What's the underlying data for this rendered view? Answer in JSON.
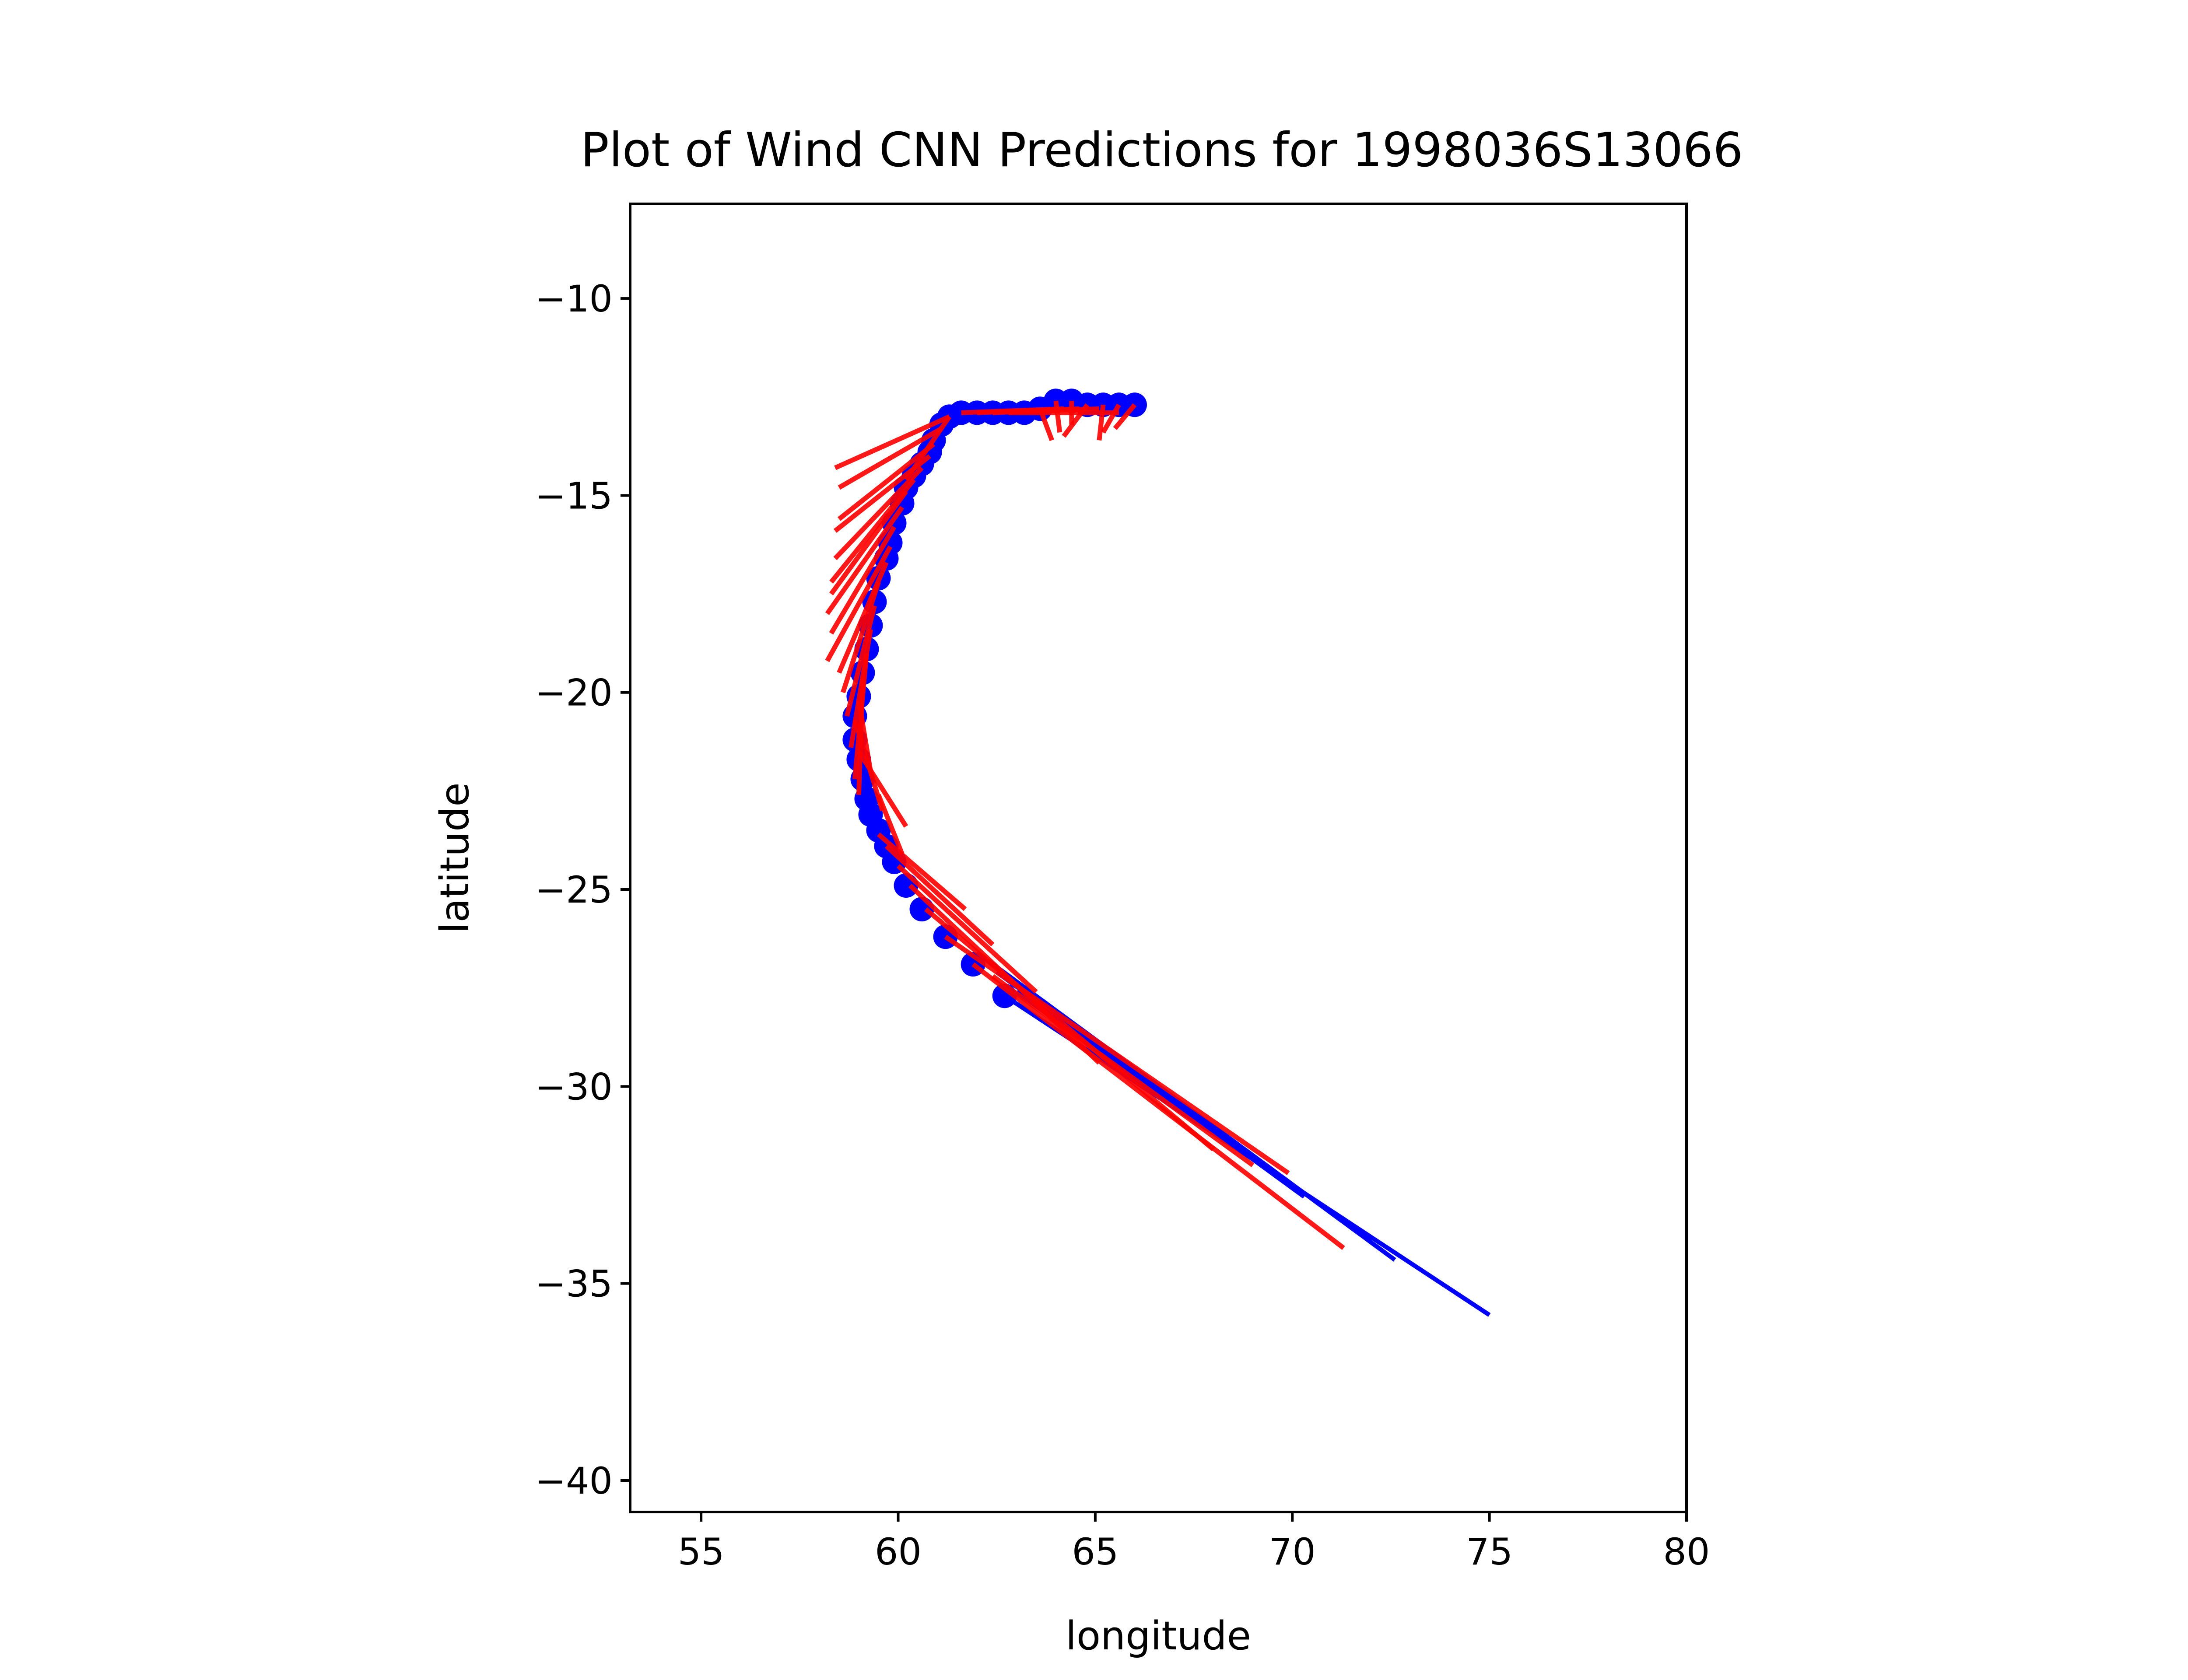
{
  "chart_data": {
    "type": "scatter",
    "title": "Plot of Wind CNN Predictions for 1998036S13066",
    "xlabel": "longitude",
    "ylabel": "latitude",
    "xlim": [
      53.2,
      80
    ],
    "ylim": [
      -40.8,
      -7.6
    ],
    "xticks": [
      55,
      60,
      65,
      70,
      75,
      80
    ],
    "yticks": [
      -10,
      -15,
      -20,
      -25,
      -30,
      -35,
      -40
    ],
    "xtick_labels": [
      "55",
      "60",
      "65",
      "70",
      "75",
      "80"
    ],
    "ytick_labels": [
      "−10",
      "−15",
      "−20",
      "−25",
      "−30",
      "−35",
      "−40"
    ],
    "grid": false,
    "legend": "none",
    "colors": {
      "track": "#0000ff",
      "prediction": "#ff0000"
    },
    "series": [
      {
        "role": "observed track points",
        "color": "#0000ff",
        "points": [
          [
            66.0,
            -12.7
          ],
          [
            65.6,
            -12.7
          ],
          [
            65.2,
            -12.7
          ],
          [
            64.8,
            -12.7
          ],
          [
            64.4,
            -12.6
          ],
          [
            64.0,
            -12.6
          ],
          [
            63.6,
            -12.8
          ],
          [
            63.2,
            -12.9
          ],
          [
            62.8,
            -12.9
          ],
          [
            62.4,
            -12.9
          ],
          [
            62.0,
            -12.9
          ],
          [
            61.6,
            -12.9
          ],
          [
            61.3,
            -13.0
          ],
          [
            61.1,
            -13.2
          ],
          [
            60.9,
            -13.6
          ],
          [
            60.8,
            -13.9
          ],
          [
            60.6,
            -14.2
          ],
          [
            60.4,
            -14.5
          ],
          [
            60.2,
            -14.8
          ],
          [
            60.1,
            -15.2
          ],
          [
            59.9,
            -15.7
          ],
          [
            59.8,
            -16.2
          ],
          [
            59.7,
            -16.6
          ],
          [
            59.5,
            -17.1
          ],
          [
            59.4,
            -17.7
          ],
          [
            59.3,
            -18.3
          ],
          [
            59.2,
            -18.9
          ],
          [
            59.1,
            -19.5
          ],
          [
            59.0,
            -20.1
          ],
          [
            58.9,
            -20.6
          ],
          [
            58.9,
            -21.2
          ],
          [
            59.0,
            -21.7
          ],
          [
            59.1,
            -22.2
          ],
          [
            59.2,
            -22.7
          ],
          [
            59.3,
            -23.1
          ],
          [
            59.5,
            -23.5
          ],
          [
            59.7,
            -23.9
          ],
          [
            59.9,
            -24.3
          ],
          [
            60.2,
            -24.9
          ],
          [
            60.6,
            -25.5
          ],
          [
            61.2,
            -26.2
          ],
          [
            61.9,
            -26.9
          ],
          [
            62.7,
            -27.7
          ]
        ]
      },
      {
        "role": "observed track lines",
        "color": "#0000ff",
        "segments": [
          [
            [
              62.7,
              -27.7
            ],
            [
              75.0,
              -35.8
            ]
          ],
          [
            [
              62.0,
              -26.6
            ],
            [
              72.6,
              -34.4
            ]
          ],
          [
            [
              62.5,
              -27.1
            ],
            [
              70.3,
              -32.8
            ]
          ],
          [
            [
              63.0,
              -27.6
            ],
            [
              68.3,
              -31.4
            ]
          ]
        ]
      },
      {
        "role": "CNN predictions",
        "color": "#ff0000",
        "segments": [
          [
            [
              61.3,
              -13.0
            ],
            [
              58.4,
              -14.3
            ]
          ],
          [
            [
              61.1,
              -13.3
            ],
            [
              58.5,
              -14.8
            ]
          ],
          [
            [
              60.9,
              -13.7
            ],
            [
              58.5,
              -15.6
            ]
          ],
          [
            [
              60.8,
              -14.0
            ],
            [
              58.4,
              -15.9
            ]
          ],
          [
            [
              60.6,
              -14.3
            ],
            [
              58.4,
              -16.6
            ]
          ],
          [
            [
              60.4,
              -14.6
            ],
            [
              58.3,
              -17.2
            ]
          ],
          [
            [
              60.2,
              -14.9
            ],
            [
              58.3,
              -17.5
            ]
          ],
          [
            [
              60.1,
              -15.3
            ],
            [
              58.2,
              -18.0
            ]
          ],
          [
            [
              59.9,
              -15.8
            ],
            [
              58.3,
              -18.5
            ]
          ],
          [
            [
              59.8,
              -16.3
            ],
            [
              58.2,
              -19.2
            ]
          ],
          [
            [
              59.7,
              -16.7
            ],
            [
              58.5,
              -19.5
            ]
          ],
          [
            [
              59.5,
              -17.2
            ],
            [
              58.6,
              -20.0
            ]
          ],
          [
            [
              59.4,
              -17.8
            ],
            [
              58.7,
              -20.6
            ]
          ],
          [
            [
              59.3,
              -18.4
            ],
            [
              58.8,
              -21.4
            ]
          ],
          [
            [
              59.2,
              -19.0
            ],
            [
              58.9,
              -22.2
            ]
          ],
          [
            [
              59.1,
              -19.6
            ],
            [
              59.0,
              -22.6
            ]
          ],
          [
            [
              59.0,
              -20.2
            ],
            [
              59.3,
              -22.0
            ]
          ],
          [
            [
              58.9,
              -20.7
            ],
            [
              59.6,
              -23.0
            ]
          ],
          [
            [
              59.0,
              -21.5
            ],
            [
              60.2,
              -23.4
            ]
          ],
          [
            [
              59.5,
              -22.6
            ],
            [
              60.1,
              -24.1
            ]
          ],
          [
            [
              59.5,
              -23.6
            ],
            [
              61.7,
              -25.5
            ]
          ],
          [
            [
              59.7,
              -23.9
            ],
            [
              62.4,
              -26.4
            ]
          ],
          [
            [
              60.0,
              -24.4
            ],
            [
              63.5,
              -27.6
            ]
          ],
          [
            [
              60.3,
              -24.9
            ],
            [
              65.1,
              -29.4
            ]
          ],
          [
            [
              60.7,
              -25.5
            ],
            [
              68.0,
              -31.6
            ]
          ],
          [
            [
              61.2,
              -26.2
            ],
            [
              69.9,
              -32.2
            ]
          ],
          [
            [
              61.9,
              -26.9
            ],
            [
              71.3,
              -34.1
            ]
          ],
          [
            [
              62.4,
              -27.2
            ],
            [
              69.0,
              -32.0
            ]
          ],
          [
            [
              61.6,
              -12.9
            ],
            [
              64.2,
              -12.8
            ]
          ],
          [
            [
              62.0,
              -12.9
            ],
            [
              64.6,
              -12.8
            ]
          ],
          [
            [
              62.4,
              -12.9
            ],
            [
              65.1,
              -12.8
            ]
          ],
          [
            [
              62.8,
              -12.9
            ],
            [
              65.6,
              -12.9
            ]
          ],
          [
            [
              63.6,
              -12.8
            ],
            [
              63.9,
              -13.6
            ]
          ],
          [
            [
              64.0,
              -12.6
            ],
            [
              64.1,
              -13.4
            ]
          ],
          [
            [
              64.4,
              -12.6
            ],
            [
              64.4,
              -13.2
            ]
          ],
          [
            [
              64.8,
              -12.7
            ],
            [
              64.2,
              -13.5
            ]
          ],
          [
            [
              65.2,
              -12.7
            ],
            [
              65.1,
              -13.6
            ]
          ],
          [
            [
              65.6,
              -12.7
            ],
            [
              65.2,
              -13.4
            ]
          ],
          [
            [
              66.0,
              -12.7
            ],
            [
              65.5,
              -13.3
            ]
          ],
          [
            [
              61.3,
              -13.0
            ],
            [
              60.2,
              -14.6
            ]
          ]
        ]
      }
    ]
  }
}
